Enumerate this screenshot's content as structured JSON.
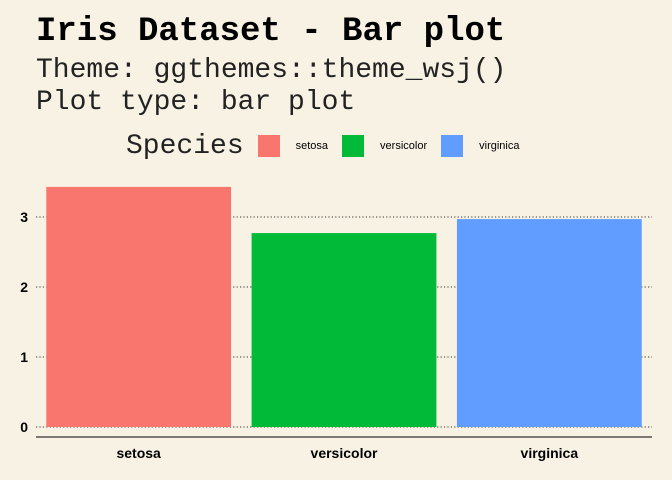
{
  "title": "Iris Dataset - Bar plot",
  "subtitle_line1": "Theme: ggthemes::theme_wsj()",
  "subtitle_line2": "Plot type: bar plot",
  "legend": {
    "title": "Species",
    "items": [
      {
        "label": "setosa",
        "color": "#f8766d"
      },
      {
        "label": "versicolor",
        "color": "#00ba38"
      },
      {
        "label": "virginica",
        "color": "#619cff"
      }
    ]
  },
  "chart_data": {
    "type": "bar",
    "categories": [
      "setosa",
      "versicolor",
      "virginica"
    ],
    "values": [
      3.43,
      2.77,
      2.97
    ],
    "colors": [
      "#f8766d",
      "#00ba38",
      "#619cff"
    ],
    "title": "Iris Dataset - Bar plot",
    "xlabel": "",
    "ylabel": "",
    "ylim": [
      0,
      3.5
    ],
    "yticks": [
      0,
      1,
      2,
      3
    ],
    "grid": "horizontal dotted",
    "legend_position": "top"
  }
}
